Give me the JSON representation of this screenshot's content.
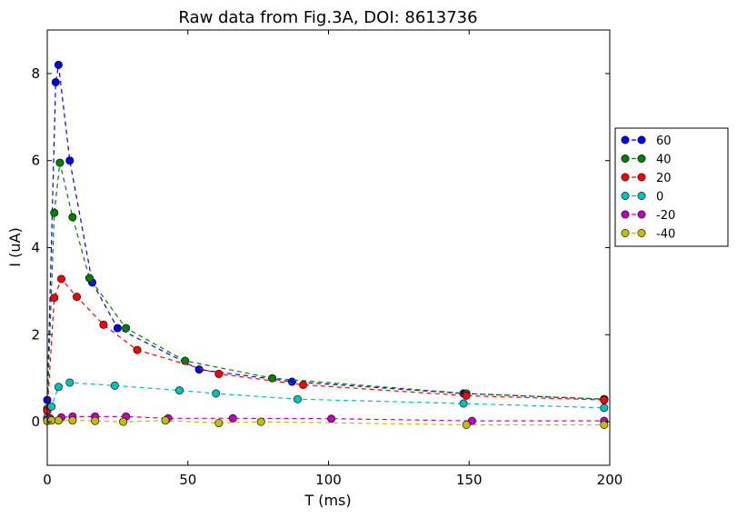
{
  "chart_data": {
    "type": "line",
    "title": "Raw data from Fig.3A, DOI: 8613736",
    "xlabel": "T (ms)",
    "ylabel": "I (uA)",
    "xlim": [
      0,
      200
    ],
    "ylim": [
      -1,
      9
    ],
    "xticks": [
      "0",
      "50",
      "100",
      "150",
      "200"
    ],
    "yticks": [
      "0",
      "2",
      "4",
      "6",
      "8"
    ],
    "grid": false,
    "legend_position": "outside-right",
    "series": [
      {
        "name": "60",
        "color": "#0000ff",
        "x": [
          0,
          3,
          4,
          8,
          16,
          25,
          54,
          87,
          148,
          198
        ],
        "y": [
          0.5,
          7.8,
          8.2,
          6.0,
          3.2,
          2.15,
          1.2,
          0.92,
          0.65,
          0.52
        ]
      },
      {
        "name": "40",
        "color": "#008000",
        "x": [
          0,
          2.5,
          4.5,
          9,
          15,
          28,
          49,
          80,
          149,
          198
        ],
        "y": [
          0.3,
          4.8,
          5.95,
          4.7,
          3.3,
          2.15,
          1.4,
          1.0,
          0.65,
          0.52
        ]
      },
      {
        "name": "20",
        "color": "#ff0000",
        "x": [
          0,
          2.5,
          5,
          10.5,
          20,
          32,
          61,
          91,
          149,
          198
        ],
        "y": [
          0.25,
          2.85,
          3.28,
          2.87,
          2.23,
          1.65,
          1.1,
          0.85,
          0.6,
          0.5
        ]
      },
      {
        "name": "0",
        "color": "#00bfbf",
        "x": [
          0,
          1.5,
          4,
          8,
          24,
          47,
          60,
          89,
          148,
          198
        ],
        "y": [
          0.1,
          0.35,
          0.8,
          0.9,
          0.83,
          0.72,
          0.65,
          0.52,
          0.42,
          0.32
        ]
      },
      {
        "name": "-20",
        "color": "#bf00bf",
        "x": [
          0,
          1,
          5,
          9,
          17,
          28,
          43,
          66,
          101,
          151,
          198
        ],
        "y": [
          0.05,
          0.08,
          0.1,
          0.12,
          0.12,
          0.12,
          0.08,
          0.08,
          0.07,
          0.02,
          0.02
        ]
      },
      {
        "name": "-40",
        "color": "#bfbf00",
        "x": [
          0,
          1.5,
          4,
          9,
          17,
          27,
          42,
          61,
          76,
          149,
          198
        ],
        "y": [
          0.02,
          0.03,
          0.03,
          0.03,
          0.02,
          0.0,
          0.03,
          -0.03,
          0.0,
          -0.07,
          -0.07
        ]
      }
    ]
  }
}
